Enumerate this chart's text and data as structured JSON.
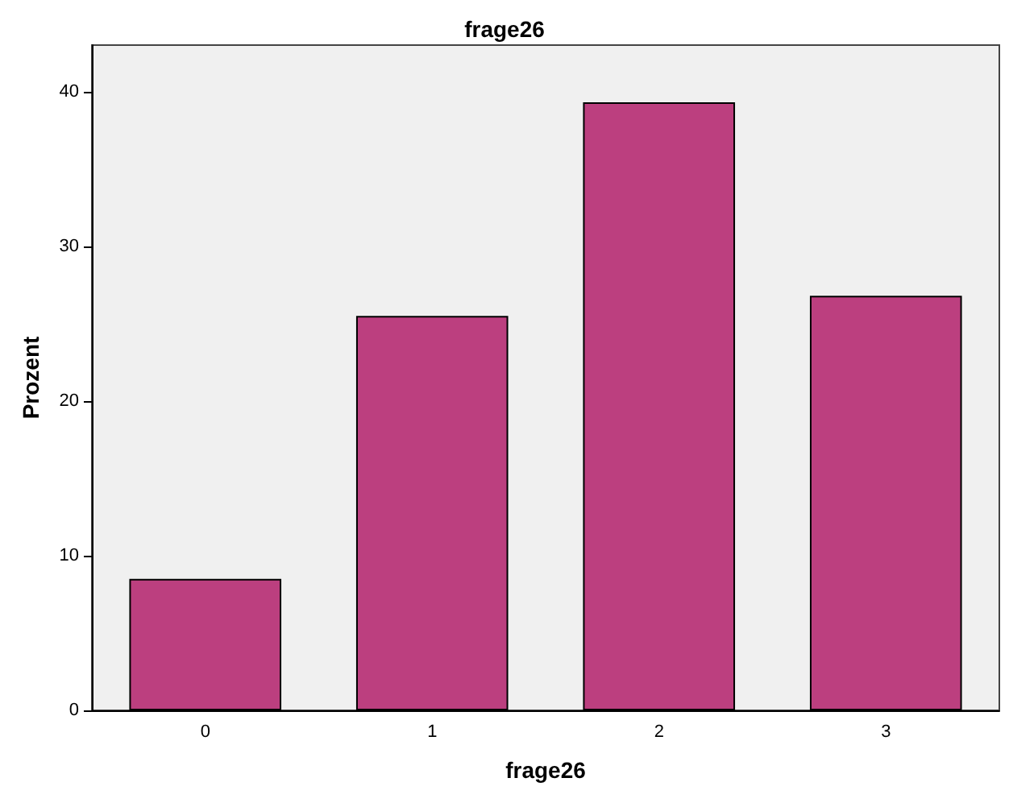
{
  "chart_data": {
    "type": "bar",
    "title": "frage26",
    "xlabel": "frage26",
    "ylabel": "Prozent",
    "categories": [
      "0",
      "1",
      "2",
      "3"
    ],
    "values": [
      8.5,
      25.5,
      39.3,
      26.8
    ],
    "color": "#bc3f7f",
    "ylim": [
      0,
      43
    ],
    "yticks": [
      0,
      10,
      20,
      30,
      40
    ],
    "grid": false
  }
}
